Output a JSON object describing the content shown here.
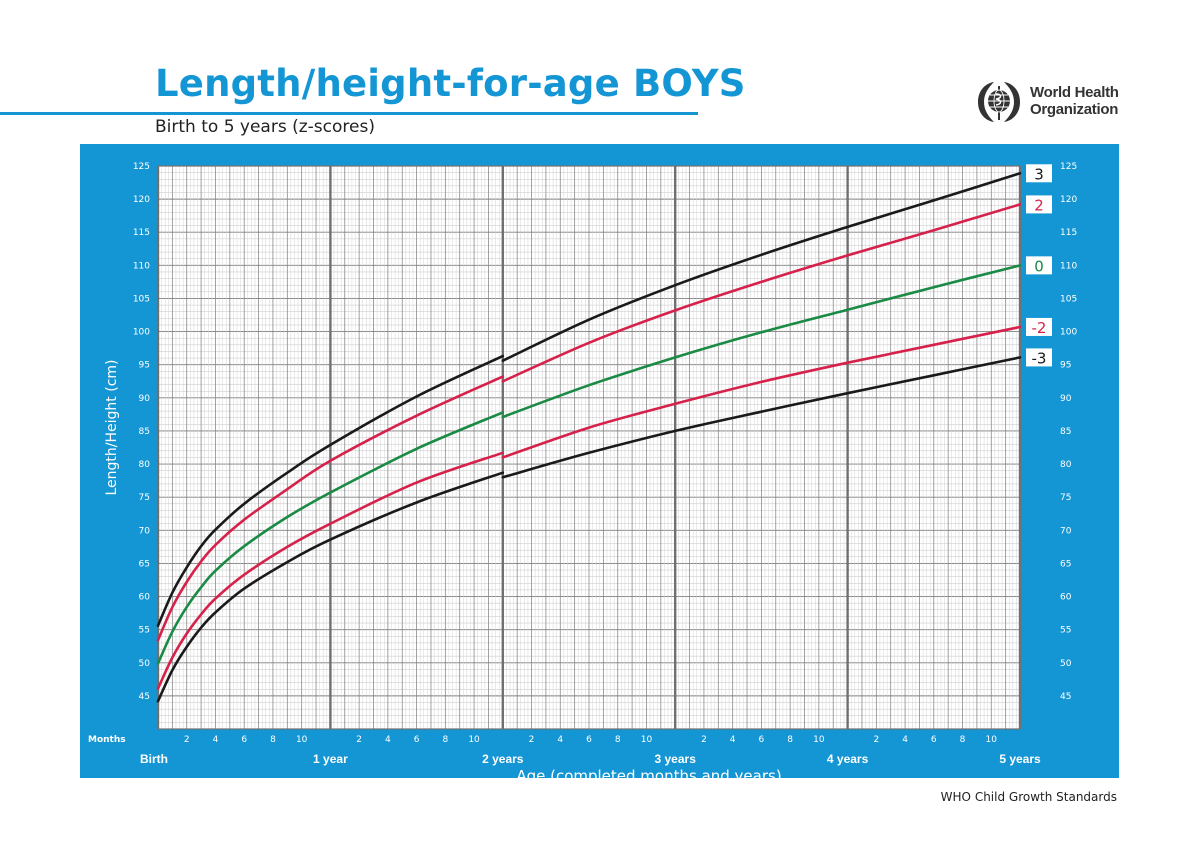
{
  "header": {
    "title": "Length/height-for-age BOYS",
    "subtitle": "Birth to 5 years (z-scores)",
    "org_name_line1": "World Health",
    "org_name_line2": "Organization"
  },
  "footer": {
    "text": "WHO Child Growth Standards"
  },
  "colors": {
    "accent": "#1596d4",
    "grid_bg": "#ffffff",
    "line_black": "#1a1a1a",
    "line_red": "#d6224a",
    "line_green": "#1a8a45"
  },
  "chart_data": {
    "type": "line",
    "title": "Length/height-for-age BOYS",
    "subtitle": "Birth to 5 years (z-scores)",
    "xlabel": "Age (completed months and years)",
    "ylabel": "Length/Height (cm)",
    "x_unit_label": "Months",
    "xlim": [
      0,
      60
    ],
    "ylim": [
      40,
      125
    ],
    "y_ticks": [
      45,
      50,
      55,
      60,
      65,
      70,
      75,
      80,
      85,
      90,
      95,
      100,
      105,
      110,
      115,
      120,
      125
    ],
    "x_month_ticks": [
      2,
      4,
      6,
      8,
      10
    ],
    "x_year_ticks": [
      {
        "x": 0,
        "label": "Birth"
      },
      {
        "x": 12,
        "label": "1 year"
      },
      {
        "x": 24,
        "label": "2 years"
      },
      {
        "x": 36,
        "label": "3 years"
      },
      {
        "x": 48,
        "label": "4 years"
      },
      {
        "x": 60,
        "label": "5 years"
      }
    ],
    "grid": true,
    "x": [
      0,
      1,
      2,
      3,
      4,
      6,
      9,
      12,
      18,
      24,
      30,
      36,
      42,
      48,
      54,
      60
    ],
    "series": [
      {
        "name": "3",
        "color": "#1a1a1a",
        "values_under2": [
          55.6,
          60.6,
          64.4,
          67.6,
          70.1,
          74.0,
          78.7,
          82.9,
          90.2,
          96.3
        ],
        "values_over2": [
          95.6,
          101.8,
          107.0,
          111.6,
          115.8,
          119.8,
          123.9
        ]
      },
      {
        "name": "2",
        "color": "#d6224a",
        "values_under2": [
          53.4,
          58.4,
          62.2,
          65.3,
          67.8,
          71.6,
          76.2,
          80.5,
          87.3,
          93.2
        ],
        "values_over2": [
          92.5,
          98.3,
          103.2,
          107.5,
          111.5,
          115.3,
          119.2
        ]
      },
      {
        "name": "0",
        "color": "#1a8a45",
        "values_under2": [
          49.9,
          54.7,
          58.4,
          61.4,
          63.9,
          67.6,
          72.0,
          75.7,
          82.3,
          87.8
        ],
        "values_over2": [
          87.1,
          91.9,
          96.1,
          99.9,
          103.3,
          106.7,
          110.0
        ]
      },
      {
        "name": "-2",
        "color": "#d6224a",
        "values_under2": [
          46.1,
          50.8,
          54.4,
          57.3,
          59.7,
          63.3,
          67.5,
          71.0,
          77.2,
          81.7
        ],
        "values_over2": [
          81.0,
          85.5,
          89.1,
          92.4,
          95.3,
          98.0,
          100.7
        ]
      },
      {
        "name": "-3",
        "color": "#1a1a1a",
        "values_under2": [
          44.2,
          48.9,
          52.4,
          55.3,
          57.6,
          61.2,
          65.2,
          68.6,
          74.2,
          78.7
        ],
        "values_over2": [
          78.0,
          81.7,
          85.0,
          87.9,
          90.7,
          93.4,
          96.1
        ]
      }
    ]
  }
}
